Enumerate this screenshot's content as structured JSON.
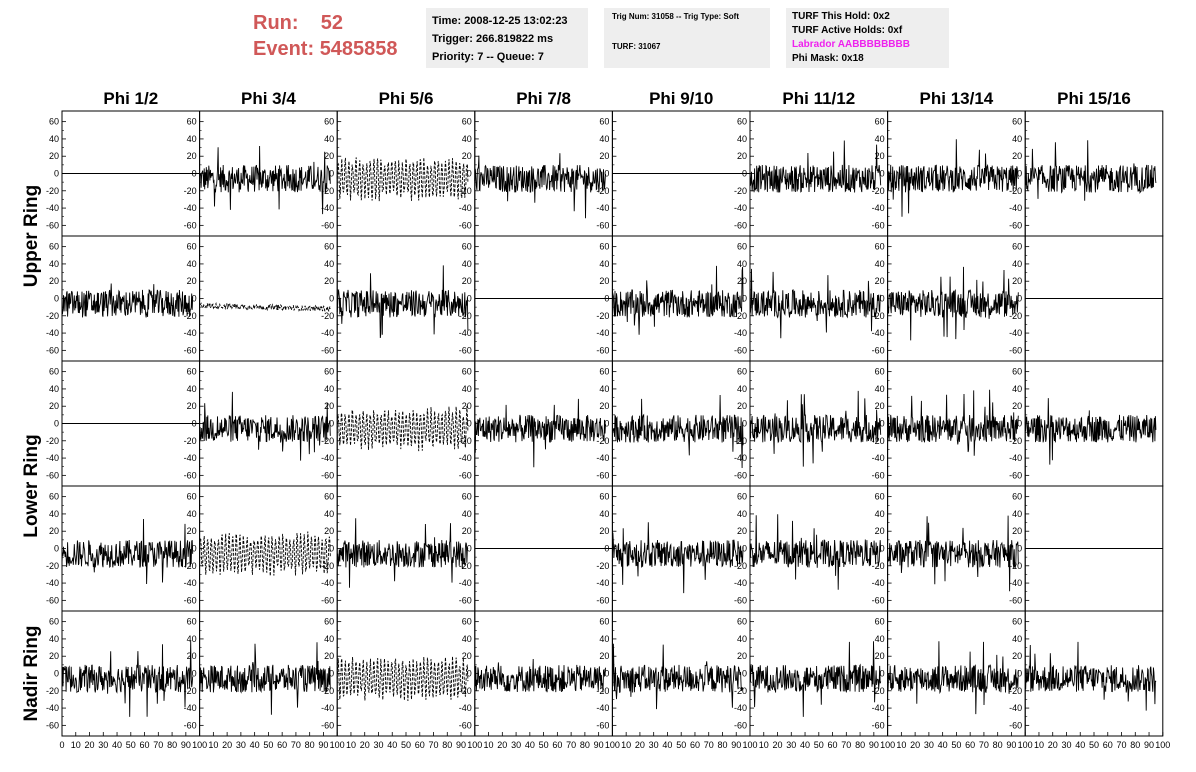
{
  "header": {
    "run_label": "Run:",
    "run_value": "52",
    "event_label": "Event:",
    "event_value": "5485858",
    "accent_color": "#d05858"
  },
  "time_box": {
    "time": "Time: 2008-12-25 13:02:23",
    "trigger": "Trigger: 266.819822 ms",
    "priority": "Priority: 7 -- Queue: 7"
  },
  "trig_box": {
    "trig": "Trig Num: 31058 -- Trig Type: Soft",
    "turf": "TURF: 31067"
  },
  "turf_box": {
    "this_hold": "TURF This Hold: 0x2",
    "active_holds": "TURF Active Holds: 0xf",
    "labrador": "Labrador AABBBBBBBB",
    "labrador_color": "#ee22ee",
    "phi_mask": "Phi Mask: 0x18"
  },
  "chart_data": {
    "type": "line",
    "columns": [
      "Phi 1/2",
      "Phi 3/4",
      "Phi 5/6",
      "Phi 7/8",
      "Phi 9/10",
      "Phi 11/12",
      "Phi 13/14",
      "Phi 15/16"
    ],
    "row_groups": [
      "Upper Ring",
      "Lower Ring",
      "Nadir Ring"
    ],
    "ylim": [
      -70,
      70
    ],
    "yticks": [
      -60,
      -40,
      -20,
      0,
      20,
      40,
      60
    ],
    "xlim": [
      0,
      100
    ],
    "xticks": [
      0,
      10,
      20,
      30,
      40,
      50,
      60,
      70,
      80,
      90,
      100
    ],
    "panels": [
      [
        "flat",
        "noise",
        "dashed",
        "noise",
        "flat",
        "noise",
        "noise",
        "noise"
      ],
      [
        "noise",
        "dashed-low",
        "noise",
        "flat",
        "noise",
        "noise",
        "noise",
        "flat"
      ],
      [
        "flat",
        "noise",
        "dashed",
        "noise",
        "noise",
        "noise",
        "noise",
        "noise"
      ],
      [
        "noise",
        "dashed",
        "noise",
        "flat",
        "noise",
        "noise",
        "noise",
        "flat"
      ],
      [
        "noise",
        "noise",
        "dashed",
        "noise",
        "noise",
        "noise",
        "noise",
        "noise"
      ]
    ]
  }
}
